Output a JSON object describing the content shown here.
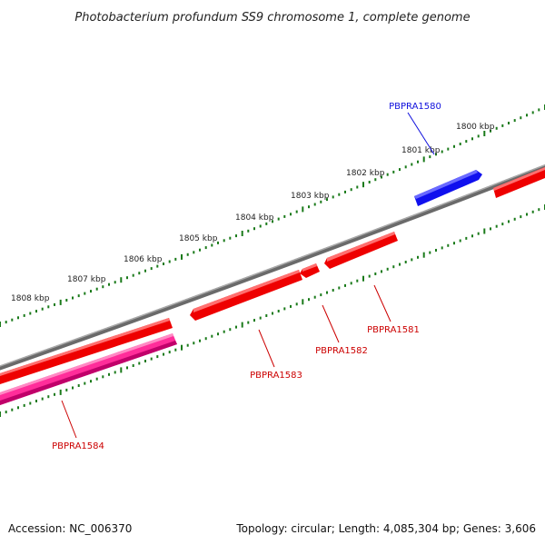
{
  "title": "Photobacterium profundum SS9 chromosome 1, complete genome",
  "accession": "Accession: NC_006370",
  "topology_info": "Topology: circular; Length: 4,085,304 bp; Genes: 3,606",
  "kbp_labels": [
    "1800 kbp",
    "1801 kbp",
    "1802 kbp",
    "1803 kbp",
    "1804 kbp",
    "1805 kbp",
    "1806 kbp",
    "1807 kbp",
    "1808 kbp"
  ],
  "genes": [
    {
      "name": "PBPRA1580",
      "strand": "+",
      "color": "#1010dd"
    },
    {
      "name": "PBPRA1581",
      "strand": "-",
      "color": "#cc0000"
    },
    {
      "name": "PBPRA1582",
      "strand": "-",
      "color": "#cc0000"
    },
    {
      "name": "PBPRA1583",
      "strand": "-",
      "color": "#cc0000"
    },
    {
      "name": "PBPRA1584",
      "strand": "-",
      "color": "#cc0000"
    }
  ],
  "colors": {
    "backbone": "#888888",
    "tick": "#1a7a1a",
    "forward_gene": "#1010ee",
    "reverse_gene": "#ee0000",
    "highlight_gene": "#ff2d9a"
  }
}
